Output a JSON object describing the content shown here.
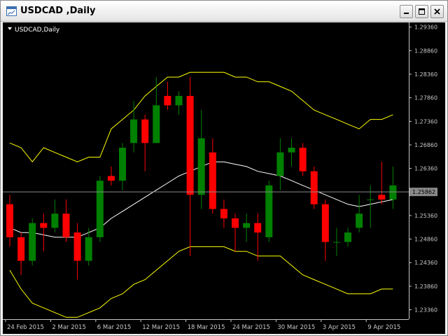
{
  "window": {
    "title": "USDCAD ,Daily",
    "controls": [
      "minimize-icon",
      "maximize-icon",
      "close-icon"
    ]
  },
  "chart": {
    "label": "USDCAD,Daily",
    "current_price": "1.25862",
    "colors": {
      "background": "#000000",
      "bull": "#008000",
      "bear": "#ff0000",
      "envelope": "#ffff00",
      "average": "#ffffff",
      "axis": "#c8c8c8"
    }
  },
  "chart_data": {
    "type": "candlestick",
    "symbol": "USDCAD",
    "timeframe": "Daily",
    "price_ticks": [
      "1.29360",
      "1.28860",
      "1.28360",
      "1.27860",
      "1.27360",
      "1.26860",
      "1.26360",
      "1.25860",
      "1.25360",
      "1.24860",
      "1.24360",
      "1.23860",
      "1.23360"
    ],
    "date_labels": [
      "24 Feb 2015",
      "2 Mar 2015",
      "6 Mar 2015",
      "12 Mar 2015",
      "18 Mar 2015",
      "24 Mar 2015",
      "30 Mar 2015",
      "3 Apr 2015",
      "9 Apr 2015"
    ],
    "current_price": 1.25862,
    "ylim": [
      1.2316,
      1.2946
    ],
    "candles": [
      {
        "o": 1.256,
        "h": 1.258,
        "l": 1.247,
        "c": 1.249
      },
      {
        "o": 1.249,
        "h": 1.25,
        "l": 1.241,
        "c": 1.244
      },
      {
        "o": 1.244,
        "h": 1.253,
        "l": 1.243,
        "c": 1.252
      },
      {
        "o": 1.252,
        "h": 1.254,
        "l": 1.246,
        "c": 1.251
      },
      {
        "o": 1.251,
        "h": 1.257,
        "l": 1.25,
        "c": 1.254
      },
      {
        "o": 1.254,
        "h": 1.257,
        "l": 1.248,
        "c": 1.249
      },
      {
        "o": 1.25,
        "h": 1.252,
        "l": 1.24,
        "c": 1.244
      },
      {
        "o": 1.244,
        "h": 1.251,
        "l": 1.243,
        "c": 1.249
      },
      {
        "o": 1.249,
        "h": 1.262,
        "l": 1.248,
        "c": 1.261
      },
      {
        "o": 1.262,
        "h": 1.264,
        "l": 1.26,
        "c": 1.261
      },
      {
        "o": 1.261,
        "h": 1.269,
        "l": 1.259,
        "c": 1.268
      },
      {
        "o": 1.269,
        "h": 1.278,
        "l": 1.267,
        "c": 1.274
      },
      {
        "o": 1.274,
        "h": 1.275,
        "l": 1.263,
        "c": 1.269
      },
      {
        "o": 1.269,
        "h": 1.283,
        "l": 1.269,
        "c": 1.277
      },
      {
        "o": 1.279,
        "h": 1.282,
        "l": 1.276,
        "c": 1.277
      },
      {
        "o": 1.277,
        "h": 1.28,
        "l": 1.275,
        "c": 1.279
      },
      {
        "o": 1.279,
        "h": 1.283,
        "l": 1.245,
        "c": 1.258
      },
      {
        "o": 1.258,
        "h": 1.276,
        "l": 1.255,
        "c": 1.27
      },
      {
        "o": 1.267,
        "h": 1.27,
        "l": 1.254,
        "c": 1.255
      },
      {
        "o": 1.255,
        "h": 1.257,
        "l": 1.251,
        "c": 1.253
      },
      {
        "o": 1.253,
        "h": 1.254,
        "l": 1.246,
        "c": 1.251
      },
      {
        "o": 1.251,
        "h": 1.254,
        "l": 1.248,
        "c": 1.252
      },
      {
        "o": 1.252,
        "h": 1.254,
        "l": 1.244,
        "c": 1.25
      },
      {
        "o": 1.249,
        "h": 1.261,
        "l": 1.248,
        "c": 1.26
      },
      {
        "o": 1.262,
        "h": 1.27,
        "l": 1.259,
        "c": 1.267
      },
      {
        "o": 1.267,
        "h": 1.27,
        "l": 1.264,
        "c": 1.268
      },
      {
        "o": 1.268,
        "h": 1.269,
        "l": 1.262,
        "c": 1.263
      },
      {
        "o": 1.263,
        "h": 1.264,
        "l": 1.255,
        "c": 1.256
      },
      {
        "o": 1.256,
        "h": 1.257,
        "l": 1.244,
        "c": 1.248
      },
      {
        "o": 1.248,
        "h": 1.251,
        "l": 1.245,
        "c": 1.248
      },
      {
        "o": 1.248,
        "h": 1.251,
        "l": 1.247,
        "c": 1.25
      },
      {
        "o": 1.251,
        "h": 1.258,
        "l": 1.25,
        "c": 1.254
      },
      {
        "o": 1.257,
        "h": 1.26,
        "l": 1.251,
        "c": 1.257
      },
      {
        "o": 1.258,
        "h": 1.265,
        "l": 1.256,
        "c": 1.257
      },
      {
        "o": 1.257,
        "h": 1.264,
        "l": 1.255,
        "c": 1.26
      }
    ],
    "series": [
      {
        "name": "envelope-upper",
        "values": [
          1.269,
          1.268,
          1.265,
          1.268,
          1.267,
          1.266,
          1.265,
          1.266,
          1.266,
          1.272,
          1.274,
          1.276,
          1.279,
          1.281,
          1.283,
          1.283,
          1.284,
          1.284,
          1.284,
          1.284,
          1.283,
          1.283,
          1.282,
          1.282,
          1.281,
          1.28,
          1.278,
          1.276,
          1.275,
          1.274,
          1.273,
          1.272,
          1.274,
          1.274,
          1.275
        ]
      },
      {
        "name": "envelope-lower",
        "values": [
          1.242,
          1.238,
          1.235,
          1.234,
          1.233,
          1.232,
          1.232,
          1.233,
          1.234,
          1.236,
          1.237,
          1.239,
          1.24,
          1.242,
          1.244,
          1.246,
          1.247,
          1.247,
          1.247,
          1.247,
          1.246,
          1.246,
          1.245,
          1.245,
          1.245,
          1.243,
          1.241,
          1.24,
          1.239,
          1.238,
          1.237,
          1.237,
          1.237,
          1.238,
          1.238
        ]
      },
      {
        "name": "moving-average",
        "values": [
          1.251,
          1.25,
          1.25,
          1.2495,
          1.249,
          1.249,
          1.249,
          1.25,
          1.251,
          1.253,
          1.2545,
          1.256,
          1.2575,
          1.259,
          1.2605,
          1.262,
          1.263,
          1.264,
          1.265,
          1.265,
          1.2645,
          1.264,
          1.263,
          1.2625,
          1.262,
          1.261,
          1.26,
          1.259,
          1.258,
          1.257,
          1.256,
          1.2555,
          1.256,
          1.2565,
          1.257
        ]
      }
    ],
    "grid": false
  }
}
